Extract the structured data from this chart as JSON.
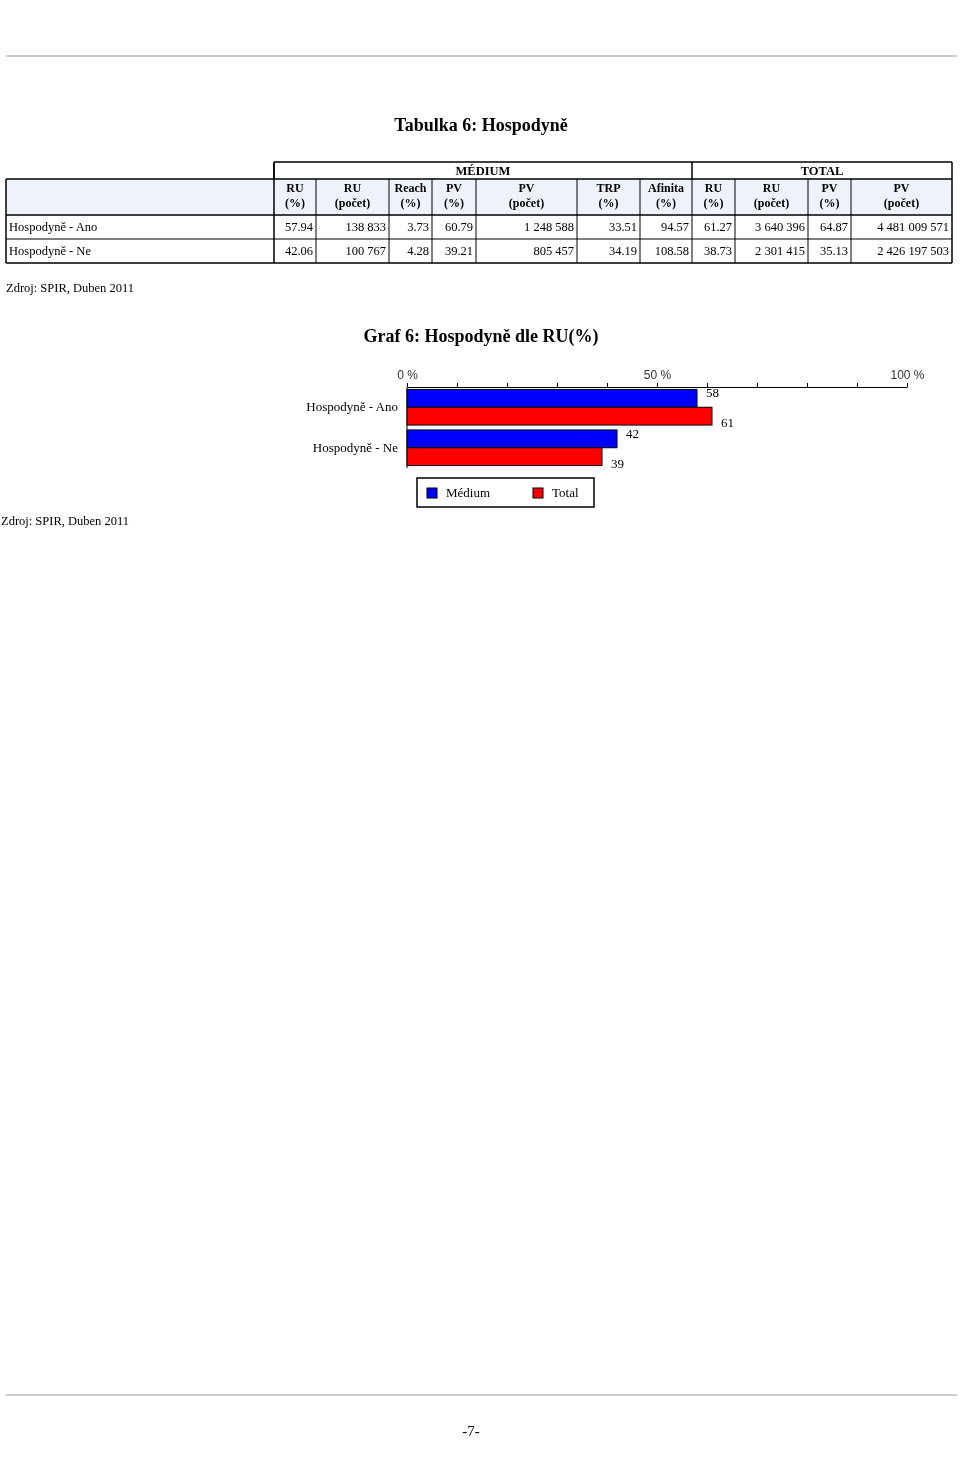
{
  "chart_data": [
    {
      "type": "other",
      "title": "Tabulka 6: Hospodyně",
      "categories": [
        "RU (%)",
        "RU (počet)",
        "Reach (%)",
        "PV (%)",
        "PV (počet)",
        "TRP (%)",
        "Afinita (%)",
        "RU (%)",
        "RU (počet)",
        "PV (%)",
        "PV (počet)"
      ],
      "series": [
        {
          "name": "Hospodyně - Ano",
          "values": [
            57.94,
            138833,
            3.73,
            60.79,
            1248588,
            33.51,
            94.57,
            61.27,
            3640396,
            64.87,
            4481009571
          ],
          "value_labels": [
            "57.94",
            "138 833",
            "3.73",
            "60.79",
            "1 248 588",
            "33.51",
            "94.57",
            "61.27",
            "3 640 396",
            "64.87",
            "4 481 009 571"
          ]
        },
        {
          "name": "Hospodyně - Ne",
          "values": [
            42.06,
            100767,
            4.28,
            39.21,
            805457,
            34.19,
            108.58,
            38.73,
            2301415,
            35.13,
            2426197503
          ],
          "value_labels": [
            "42.06",
            "100 767",
            "4.28",
            "39.21",
            "805 457",
            "34.19",
            "108.58",
            "38.73",
            "2 301 415",
            "35.13",
            "2 426 197 503"
          ]
        }
      ],
      "annotations": [
        "MÉDIUM",
        "TOTAL",
        "Zdroj: SPIR, Duben 2011"
      ]
    },
    {
      "type": "bar",
      "orientation": "horizontal",
      "title": "Graf 6: Hospodyně dle RU(%)",
      "categories": [
        "Hospodyně - Ano",
        "Hospodyně - Ne"
      ],
      "series": [
        {
          "name": "Médium",
          "color": "#0000ff",
          "values": [
            58,
            42
          ]
        },
        {
          "name": "Total",
          "color": "#ff0000",
          "values": [
            61,
            39
          ]
        }
      ],
      "xlim": [
        0,
        100
      ],
      "xticks": [
        {
          "value": 0,
          "label": "0 %"
        },
        {
          "value": 10,
          "label": null
        },
        {
          "value": 20,
          "label": null
        },
        {
          "value": 30,
          "label": null
        },
        {
          "value": 40,
          "label": null
        },
        {
          "value": 50,
          "label": "50 %"
        },
        {
          "value": 60,
          "label": null
        },
        {
          "value": 70,
          "label": null
        },
        {
          "value": 80,
          "label": null
        },
        {
          "value": 90,
          "label": null
        },
        {
          "value": 100,
          "label": "100 %"
        }
      ],
      "data_labels": true,
      "legend": "bottom",
      "annotations": [
        "Zdroj: SPIR, Duben 2011",
        "-7-"
      ]
    }
  ]
}
